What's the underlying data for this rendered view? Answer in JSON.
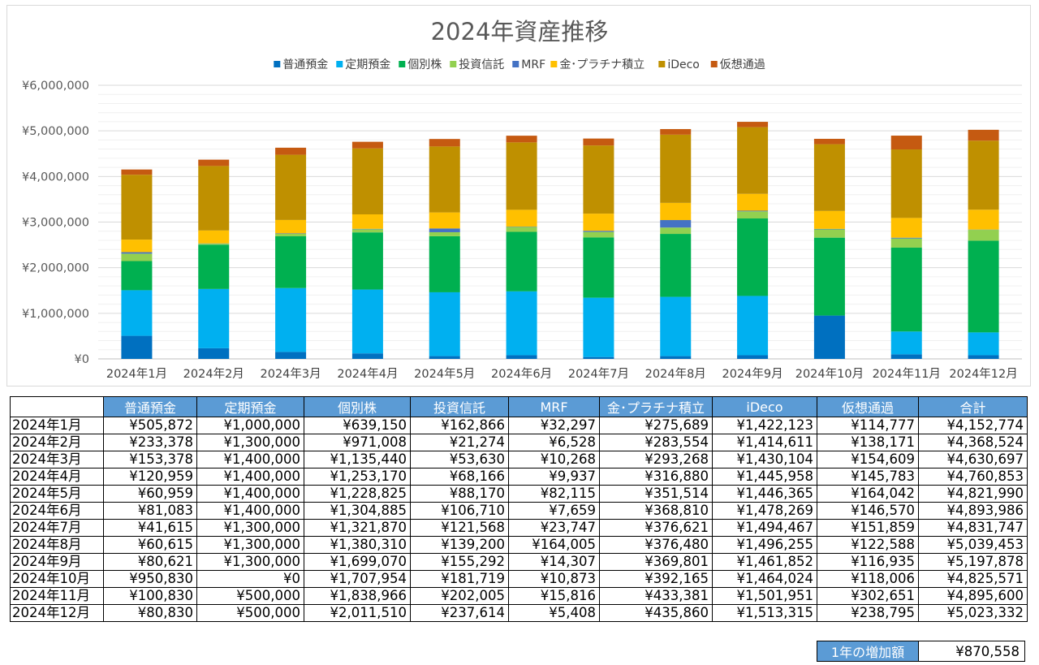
{
  "chart_data": {
    "type": "stacked-bar",
    "title": "2024年資産推移",
    "categories": [
      "2024年1月",
      "2024年2月",
      "2024年3月",
      "2024年4月",
      "2024年5月",
      "2024年6月",
      "2024年7月",
      "2024年8月",
      "2024年9月",
      "2024年10月",
      "2024年11月",
      "2024年12月"
    ],
    "ylim": [
      0,
      6000000
    ],
    "yticks": [
      0,
      1000000,
      2000000,
      3000000,
      4000000,
      5000000,
      6000000
    ],
    "ytick_labels": [
      "¥0",
      "¥1,000,000",
      "¥2,000,000",
      "¥3,000,000",
      "¥4,000,000",
      "¥5,000,000",
      "¥6,000,000"
    ],
    "legend_position": "top",
    "series": [
      {
        "name": "普通預金",
        "color": "#0070c0",
        "values": [
          505872,
          233378,
          153378,
          120959,
          60959,
          81083,
          41615,
          60615,
          80621,
          950830,
          100830,
          80830
        ]
      },
      {
        "name": "定期預金",
        "color": "#00b0f0",
        "values": [
          1000000,
          1300000,
          1400000,
          1400000,
          1400000,
          1400000,
          1300000,
          1300000,
          1300000,
          0,
          500000,
          500000
        ]
      },
      {
        "name": "個別株",
        "color": "#00b050",
        "values": [
          639150,
          971008,
          1135440,
          1253170,
          1228825,
          1304885,
          1321870,
          1380310,
          1699070,
          1707954,
          1838966,
          2011510
        ]
      },
      {
        "name": "投資信託",
        "color": "#92d050",
        "values": [
          162866,
          21274,
          53630,
          68166,
          88170,
          106710,
          121568,
          139200,
          155292,
          181719,
          202005,
          237614
        ]
      },
      {
        "name": "MRF",
        "color": "#4472c4",
        "values": [
          32297,
          6528,
          10268,
          9937,
          82115,
          7659,
          23747,
          164005,
          14307,
          10873,
          15816,
          5408
        ]
      },
      {
        "name": "金･プラチナ積立",
        "color": "#ffc000",
        "values": [
          275689,
          283554,
          293268,
          316880,
          351514,
          368810,
          376621,
          376480,
          369801,
          392165,
          433381,
          435860
        ]
      },
      {
        "name": "iDeco",
        "color": "#bf9000",
        "values": [
          1422123,
          1414611,
          1430104,
          1445958,
          1446365,
          1478269,
          1494467,
          1496255,
          1461852,
          1464024,
          1501951,
          1513315
        ]
      },
      {
        "name": "仮想通過",
        "color": "#c55a11",
        "values": [
          114777,
          138171,
          154609,
          145783,
          164042,
          146570,
          151859,
          122588,
          116935,
          118006,
          302651,
          238795
        ]
      }
    ]
  },
  "table": {
    "headers": [
      "普通預金",
      "定期預金",
      "個別株",
      "投資信託",
      "MRF",
      "金･プラチナ積立",
      "iDeco",
      "仮想通過",
      "合計"
    ],
    "rows": [
      {
        "label": "2024年1月",
        "cells": [
          "¥505,872",
          "¥1,000,000",
          "¥639,150",
          "¥162,866",
          "¥32,297",
          "¥275,689",
          "¥1,422,123",
          "¥114,777",
          "¥4,152,774"
        ]
      },
      {
        "label": "2024年2月",
        "cells": [
          "¥233,378",
          "¥1,300,000",
          "¥971,008",
          "¥21,274",
          "¥6,528",
          "¥283,554",
          "¥1,414,611",
          "¥138,171",
          "¥4,368,524"
        ]
      },
      {
        "label": "2024年3月",
        "cells": [
          "¥153,378",
          "¥1,400,000",
          "¥1,135,440",
          "¥53,630",
          "¥10,268",
          "¥293,268",
          "¥1,430,104",
          "¥154,609",
          "¥4,630,697"
        ]
      },
      {
        "label": "2024年4月",
        "cells": [
          "¥120,959",
          "¥1,400,000",
          "¥1,253,170",
          "¥68,166",
          "¥9,937",
          "¥316,880",
          "¥1,445,958",
          "¥145,783",
          "¥4,760,853"
        ]
      },
      {
        "label": "2024年5月",
        "cells": [
          "¥60,959",
          "¥1,400,000",
          "¥1,228,825",
          "¥88,170",
          "¥82,115",
          "¥351,514",
          "¥1,446,365",
          "¥164,042",
          "¥4,821,990"
        ]
      },
      {
        "label": "2024年6月",
        "cells": [
          "¥81,083",
          "¥1,400,000",
          "¥1,304,885",
          "¥106,710",
          "¥7,659",
          "¥368,810",
          "¥1,478,269",
          "¥146,570",
          "¥4,893,986"
        ]
      },
      {
        "label": "2024年7月",
        "cells": [
          "¥41,615",
          "¥1,300,000",
          "¥1,321,870",
          "¥121,568",
          "¥23,747",
          "¥376,621",
          "¥1,494,467",
          "¥151,859",
          "¥4,831,747"
        ]
      },
      {
        "label": "2024年8月",
        "cells": [
          "¥60,615",
          "¥1,300,000",
          "¥1,380,310",
          "¥139,200",
          "¥164,005",
          "¥376,480",
          "¥1,496,255",
          "¥122,588",
          "¥5,039,453"
        ]
      },
      {
        "label": "2024年9月",
        "cells": [
          "¥80,621",
          "¥1,300,000",
          "¥1,699,070",
          "¥155,292",
          "¥14,307",
          "¥369,801",
          "¥1,461,852",
          "¥116,935",
          "¥5,197,878"
        ]
      },
      {
        "label": "2024年10月",
        "cells": [
          "¥950,830",
          "¥0",
          "¥1,707,954",
          "¥181,719",
          "¥10,873",
          "¥392,165",
          "¥1,464,024",
          "¥118,006",
          "¥4,825,571"
        ]
      },
      {
        "label": "2024年11月",
        "cells": [
          "¥100,830",
          "¥500,000",
          "¥1,838,966",
          "¥202,005",
          "¥15,816",
          "¥433,381",
          "¥1,501,951",
          "¥302,651",
          "¥4,895,600"
        ]
      },
      {
        "label": "2024年12月",
        "cells": [
          "¥80,830",
          "¥500,000",
          "¥2,011,510",
          "¥237,614",
          "¥5,408",
          "¥435,860",
          "¥1,513,315",
          "¥238,795",
          "¥5,023,332"
        ]
      }
    ]
  },
  "summary": {
    "label": "1年の増加額",
    "value": "¥870,558"
  }
}
